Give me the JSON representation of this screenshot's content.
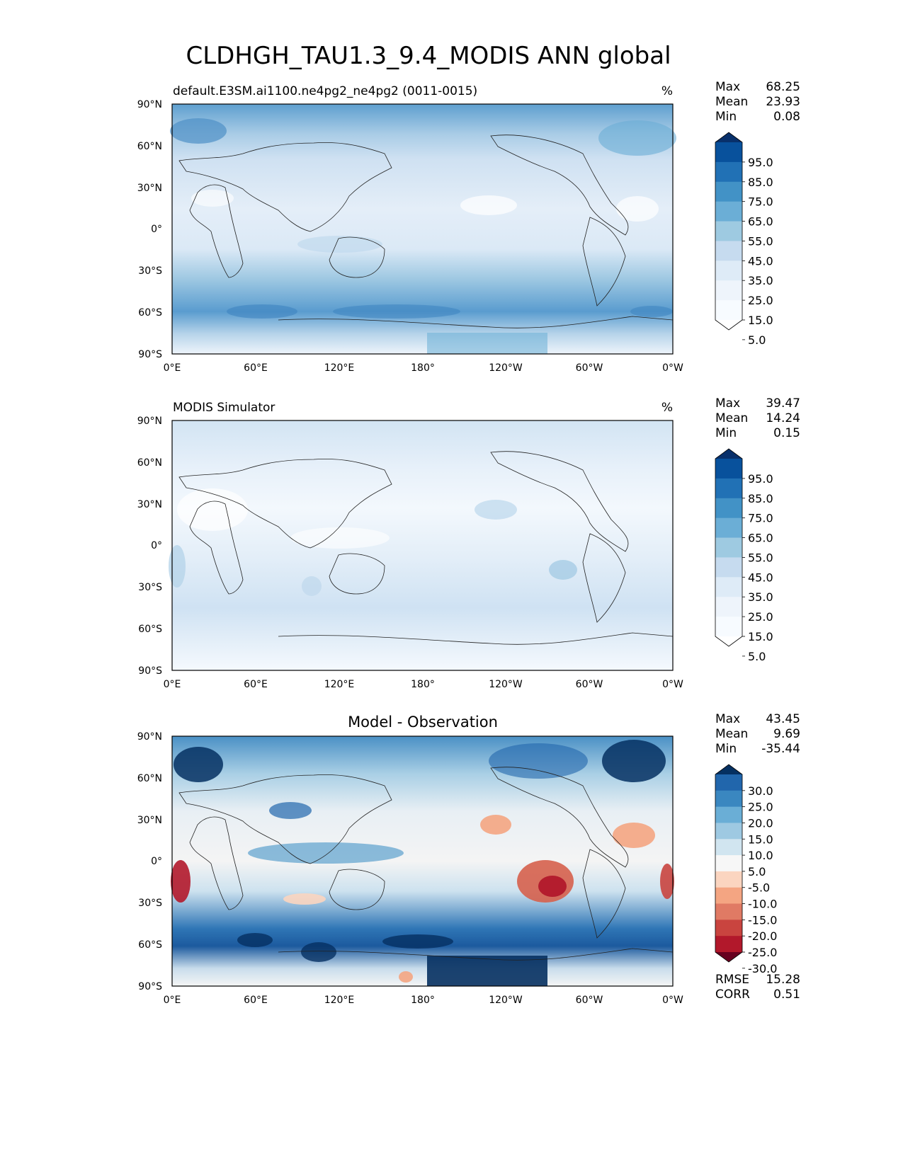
{
  "title": "CLDHGH_TAU1.3_9.4_MODIS ANN global",
  "axes": {
    "lat_ticks": [
      "90°N",
      "60°N",
      "30°N",
      "0°",
      "30°S",
      "60°S",
      "90°S"
    ],
    "lon_ticks": [
      "0°E",
      "60°E",
      "120°E",
      "180°",
      "120°W",
      "60°W",
      "0°W"
    ]
  },
  "panels": [
    {
      "id": "test",
      "title_left": "default.E3SM.ai1100.ne4pg2_ne4pg2 (0011-0015)",
      "title_center": "",
      "units": "%",
      "stats": [
        {
          "label": "Max",
          "value": "68.25"
        },
        {
          "label": "Mean",
          "value": "23.93"
        },
        {
          "label": "Min",
          "value": "0.08"
        }
      ],
      "colorbar": {
        "labels": [
          "95.0",
          "85.0",
          "75.0",
          "65.0",
          "55.0",
          "45.0",
          "35.0",
          "25.0",
          "15.0",
          "5.0"
        ],
        "colors": [
          "#08306b",
          "#08519c",
          "#2171b5",
          "#4292c6",
          "#6baed6",
          "#9ecae1",
          "#c6dbef",
          "#deebf7",
          "#eef4fb",
          "#f7fbff",
          "#ffffff"
        ]
      },
      "extra_stats": []
    },
    {
      "id": "ref",
      "title_left": "MODIS Simulator",
      "title_center": "",
      "units": "%",
      "stats": [
        {
          "label": "Max",
          "value": "39.47"
        },
        {
          "label": "Mean",
          "value": "14.24"
        },
        {
          "label": "Min",
          "value": "0.15"
        }
      ],
      "colorbar": {
        "labels": [
          "95.0",
          "85.0",
          "75.0",
          "65.0",
          "55.0",
          "45.0",
          "35.0",
          "25.0",
          "15.0",
          "5.0"
        ],
        "colors": [
          "#08306b",
          "#08519c",
          "#2171b5",
          "#4292c6",
          "#6baed6",
          "#9ecae1",
          "#c6dbef",
          "#deebf7",
          "#eef4fb",
          "#f7fbff",
          "#ffffff"
        ]
      },
      "extra_stats": []
    },
    {
      "id": "diff",
      "title_left": "",
      "title_center": "Model - Observation",
      "units": "",
      "stats": [
        {
          "label": "Max",
          "value": "43.45"
        },
        {
          "label": "Mean",
          "value": "9.69"
        },
        {
          "label": "Min",
          "value": "-35.44"
        }
      ],
      "colorbar": {
        "labels": [
          "30.0",
          "25.0",
          "20.0",
          "15.0",
          "10.0",
          "5.0",
          "-5.0",
          "-10.0",
          "-15.0",
          "-20.0",
          "-25.0",
          "-30.0"
        ],
        "colors": [
          "#053061",
          "#2166ac",
          "#3a87c0",
          "#6aaed6",
          "#9ec9e2",
          "#d1e5f0",
          "#f7f7f7",
          "#fbd5c0",
          "#f4a582",
          "#e07a64",
          "#c9443f",
          "#b2182b",
          "#67001f"
        ]
      },
      "extra_stats": [
        {
          "label": "RMSE",
          "value": "15.28"
        },
        {
          "label": "CORR",
          "value": "0.51"
        }
      ]
    }
  ]
}
